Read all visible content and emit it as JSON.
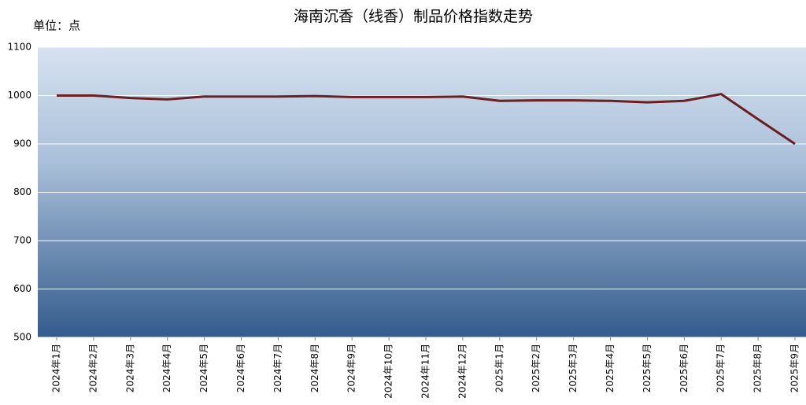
{
  "chart_data": {
    "type": "line",
    "title": "海南沉香（线香）制品价格指数走势",
    "y_unit_label": "单位：点",
    "categories": [
      "2024年1月",
      "2024年2月",
      "2024年3月",
      "2024年4月",
      "2024年5月",
      "2024年6月",
      "2024年7月",
      "2024年8月",
      "2024年9月",
      "2024年10月",
      "2024年11月",
      "2024年12月",
      "2025年1月",
      "2025年2月",
      "2025年3月",
      "2025年4月",
      "2025年5月",
      "2025年6月",
      "2025年7月",
      "2025年8月",
      "2025年9月"
    ],
    "series": [
      {
        "name": "海南沉香（线香）制品价格指数",
        "color": "#6b1f1f",
        "values": [
          1000,
          1000,
          995,
          992,
          998,
          998,
          998,
          999,
          997,
          997,
          997,
          998,
          989,
          990,
          990,
          989,
          986,
          989,
          1003,
          951,
          900
        ]
      }
    ],
    "ylim": [
      500,
      1100
    ],
    "yticks": [
      500,
      600,
      700,
      800,
      900,
      1000,
      1100
    ],
    "grid": true
  }
}
